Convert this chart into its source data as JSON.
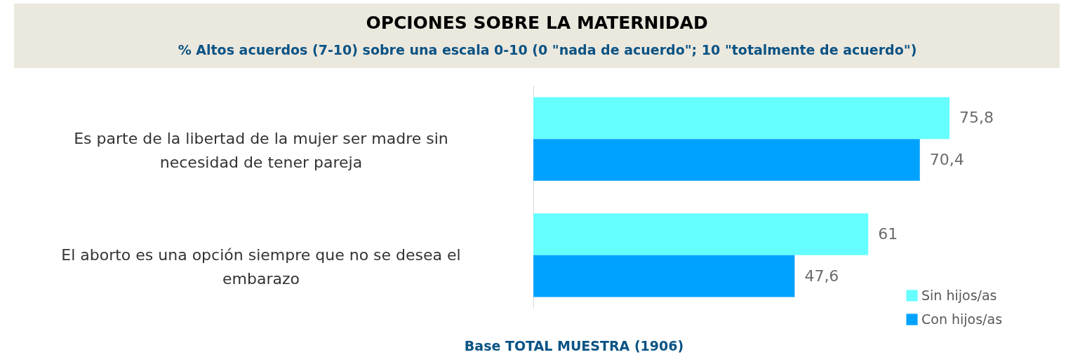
{
  "chart_data": {
    "type": "bar",
    "orientation": "horizontal",
    "title": "OPCIONES SOBRE LA MATERNIDAD",
    "subtitle": "% Altos acuerdos (7-10) sobre una escala 0-10  (0 \"nada de acuerdo\"; 10 \"totalmente de acuerdo\")",
    "categories": [
      "Es parte de la libertad de la mujer ser madre sin necesidad de tener pareja",
      "El aborto es una opción siempre que no se desea el embarazo"
    ],
    "series": [
      {
        "name": "Sin hijos/as",
        "color": "#66ffff",
        "values": [
          75.8,
          61
        ],
        "value_labels": [
          "75,8",
          "61"
        ]
      },
      {
        "name": "Con hijos/as",
        "color": "#00a2ff",
        "values": [
          70.4,
          47.6
        ],
        "value_labels": [
          "70,4",
          "47,6"
        ]
      }
    ],
    "legend": "bottom right",
    "annotations": [
      "Base TOTAL MUESTRA (1906)"
    ]
  }
}
